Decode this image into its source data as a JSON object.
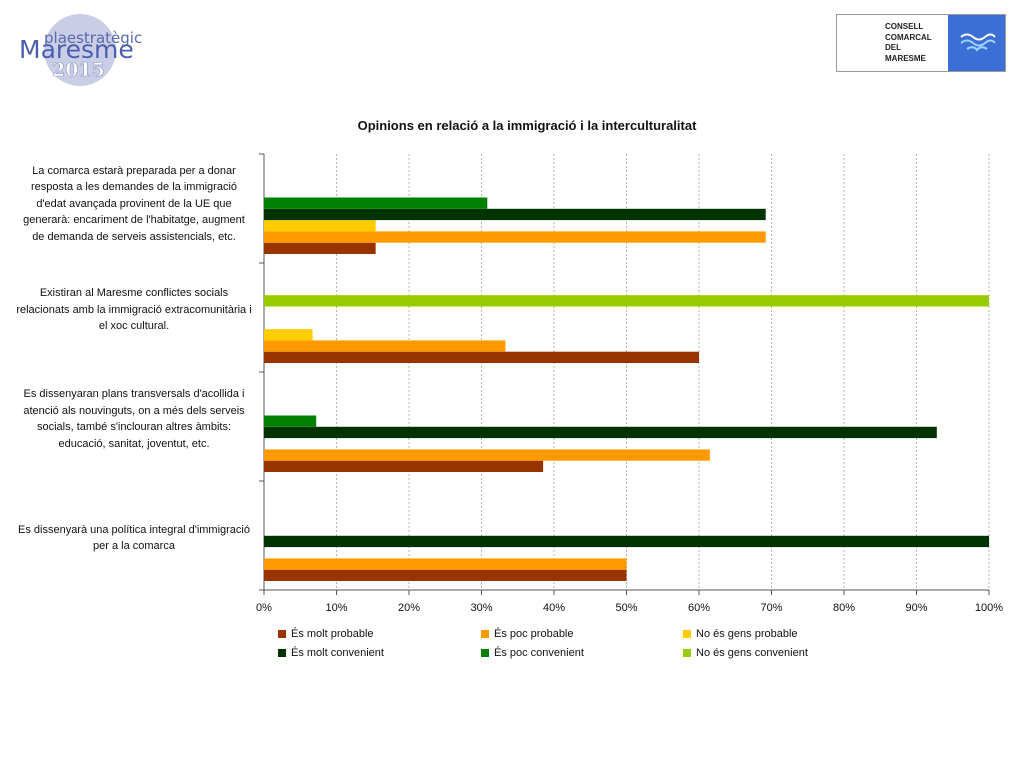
{
  "logo_left": {
    "line1": "plaestratègic",
    "line2": "Maresme",
    "line3": "2015"
  },
  "logo_right": {
    "lines": [
      "CONSELL",
      "COMARCAL",
      "DEL",
      "MARESME"
    ]
  },
  "colors": {
    "es_molt_probable": "#993300",
    "es_poc_probable": "#ff9900",
    "no_es_gens_probable": "#ffcc00",
    "es_molt_convenient": "#003300",
    "es_poc_convenient": "#008000",
    "no_es_gens_convenient": "#99cc00"
  },
  "chart_data": {
    "type": "bar",
    "orientation": "horizontal",
    "title": "Opinions en relació a la immigració i la interculturalitat",
    "categories": [
      "La comarca estarà preparada per a donar resposta a les demandes de la immigració d'edat avançada provinent de la UE que generarà: encariment de l'habitatge, augment de demanda de serveis assistencials, etc.",
      "Existiran al Maresme conflictes socials relacionats amb la immigració extracomunitària i el xoc cultural.",
      "Es dissenyaran plans transversals d'acollida i atenció als nouvinguts, on a més dels serveis socials, també s'inclouran altres àmbits: educació, sanitat, joventut, etc.",
      "Es dissenyarà una política integral d'immigració per a la comarca"
    ],
    "category_lines": [
      [
        "La comarca estarà preparada per a donar",
        "resposta a les demandes de la immigració",
        "d'edat avançada provinent de la UE que",
        "generarà: encariment de l'habitatge, augment",
        "de demanda de serveis assistencials, etc."
      ],
      [
        "Existiran al Maresme conflictes socials",
        "relacionats amb la immigració extracomunitària i",
        "el xoc cultural."
      ],
      [
        "Es dissenyaran plans transversals d'acollida i",
        "atenció als nouvinguts, on a més dels serveis",
        "socials, també s'inclouran altres àmbits:",
        "educació, sanitat, joventut, etc."
      ],
      [
        "Es dissenyarà una política integral d'immigració",
        "per a la comarca"
      ]
    ],
    "series": [
      {
        "name": "És molt probable",
        "color": "#993300",
        "values": [
          15.4,
          60,
          38.5,
          50
        ]
      },
      {
        "name": "És poc probable",
        "color": "#ff9900",
        "values": [
          69.2,
          33.3,
          61.5,
          50
        ]
      },
      {
        "name": "No és gens probable",
        "color": "#ffcc00",
        "values": [
          15.4,
          6.7,
          0,
          0
        ]
      },
      {
        "name": "És molt convenient",
        "color": "#003300",
        "values": [
          69.2,
          0,
          92.8,
          100
        ]
      },
      {
        "name": "És poc convenient",
        "color": "#008000",
        "values": [
          30.8,
          0,
          7.2,
          0
        ]
      },
      {
        "name": "No és gens convenient",
        "color": "#99cc00",
        "values": [
          0,
          100,
          0,
          0
        ]
      }
    ],
    "xlim": [
      0,
      100
    ],
    "xticks": [
      "0%",
      "10%",
      "20%",
      "30%",
      "40%",
      "50%",
      "60%",
      "70%",
      "80%",
      "90%",
      "100%"
    ],
    "grid": true,
    "legend_position": "bottom"
  }
}
